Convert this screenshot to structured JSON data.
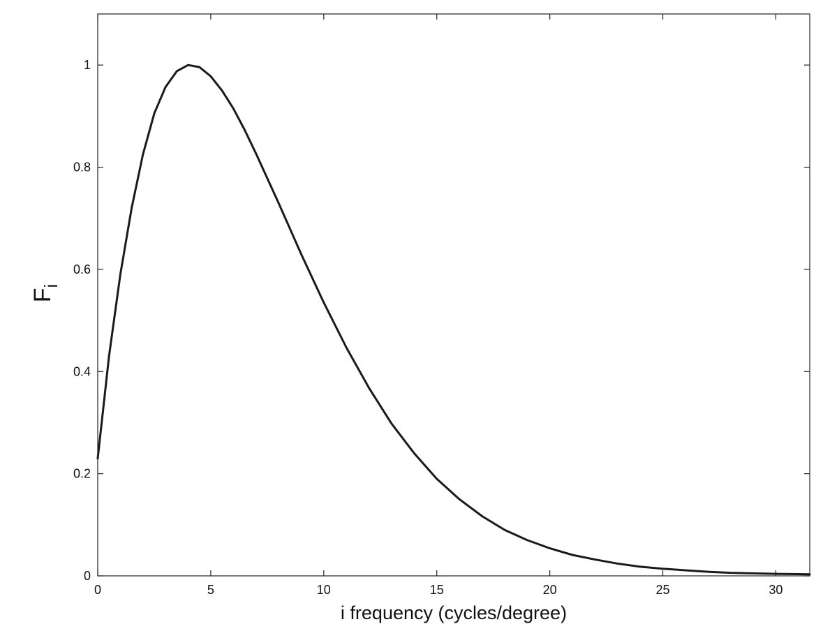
{
  "chart_data": {
    "type": "line",
    "xlabel": "i frequency (cycles/degree)",
    "ylabel": {
      "main": "F",
      "subscript": "i"
    },
    "xlim": [
      0,
      31.5
    ],
    "ylim": [
      0,
      1.1
    ],
    "xticks": [
      0,
      5,
      10,
      15,
      20,
      25,
      30
    ],
    "yticks": [
      0,
      0.2,
      0.4,
      0.6,
      0.8,
      1
    ],
    "xtick_labels": [
      "0",
      "5",
      "10",
      "15",
      "20",
      "25",
      "30"
    ],
    "ytick_labels": [
      "0",
      "0.2",
      "0.4",
      "0.6",
      "0.8",
      "1"
    ],
    "grid": false,
    "line_color": "#1a1a1a",
    "series": [
      {
        "x": [
          0,
          0.5,
          1,
          1.5,
          2,
          2.5,
          3,
          3.5,
          4,
          4.5,
          5,
          5.5,
          6,
          6.5,
          7,
          8,
          9,
          10,
          11,
          12,
          13,
          14,
          15,
          16,
          17,
          18,
          19,
          20,
          21,
          22,
          23,
          24,
          25,
          26,
          27,
          28,
          29,
          30,
          31.5
        ],
        "y": [
          0.23,
          0.43,
          0.59,
          0.72,
          0.825,
          0.905,
          0.957,
          0.988,
          1.0,
          0.996,
          0.978,
          0.95,
          0.915,
          0.873,
          0.827,
          0.73,
          0.63,
          0.535,
          0.447,
          0.368,
          0.298,
          0.24,
          0.19,
          0.15,
          0.117,
          0.09,
          0.07,
          0.054,
          0.041,
          0.032,
          0.024,
          0.018,
          0.014,
          0.011,
          0.008,
          0.006,
          0.005,
          0.004,
          0.003
        ]
      }
    ]
  }
}
